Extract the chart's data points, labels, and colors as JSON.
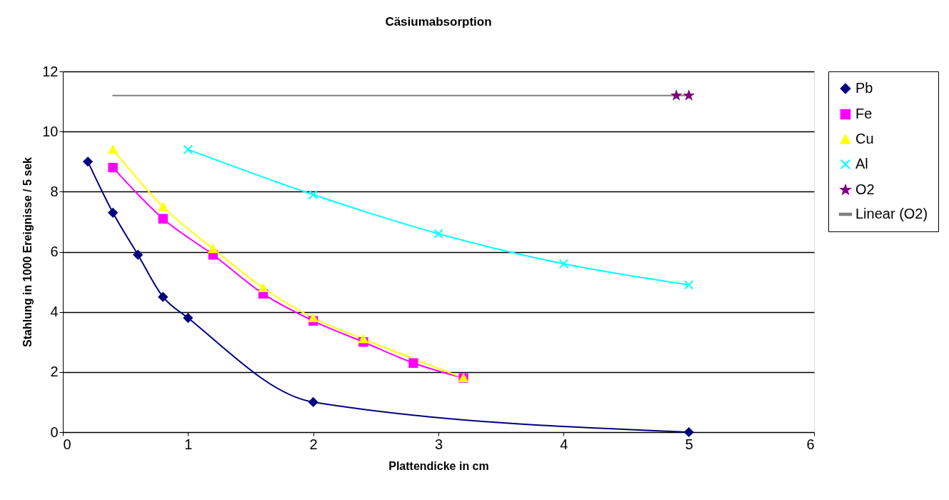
{
  "chart_data": {
    "type": "line",
    "title": "Cäsiumabsorption",
    "xlabel": "Plattendicke in cm",
    "ylabel": "Stahlung in 1000 Ereignisse / 5 sek",
    "xlim": [
      0,
      6
    ],
    "xticks": [
      0,
      1,
      2,
      3,
      4,
      5,
      6
    ],
    "ylim": [
      0,
      12
    ],
    "yticks": [
      0,
      2,
      4,
      6,
      8,
      10,
      12
    ],
    "grid": "y",
    "legend": "right",
    "series": [
      {
        "name": "Pb",
        "color": "#000080",
        "marker": "diamond",
        "x": [
          0.2,
          0.4,
          0.6,
          0.8,
          1,
          2,
          5
        ],
        "values": [
          9.0,
          7.3,
          5.9,
          4.5,
          3.8,
          1.0,
          0.0
        ]
      },
      {
        "name": "Fe",
        "color": "#ff00ff",
        "marker": "square",
        "x": [
          0.4,
          0.8,
          1.2,
          1.6,
          2,
          2.4,
          2.8,
          3.2
        ],
        "values": [
          8.8,
          7.1,
          5.9,
          4.6,
          3.7,
          3.0,
          2.3,
          1.8
        ]
      },
      {
        "name": "Cu",
        "color": "#ffff00",
        "marker": "triangle",
        "x": [
          0.4,
          0.8,
          1.2,
          1.6,
          2,
          2.4,
          3.2
        ],
        "values": [
          9.4,
          7.5,
          6.1,
          4.8,
          3.8,
          3.1,
          1.8
        ]
      },
      {
        "name": "Al",
        "color": "#00ffff",
        "marker": "cross",
        "x": [
          1,
          2,
          3,
          4,
          5
        ],
        "values": [
          9.4,
          7.9,
          6.6,
          5.6,
          4.9
        ]
      },
      {
        "name": "O2",
        "color": "#800080",
        "marker": "star",
        "type": "scatter",
        "x": [
          4.9,
          5.0
        ],
        "values": [
          11.2,
          11.2
        ]
      },
      {
        "name": "Linear (O2)",
        "color": "#808080",
        "marker": "none",
        "type": "line",
        "x": [
          0.4,
          5.0
        ],
        "values": [
          11.2,
          11.2
        ]
      }
    ]
  }
}
